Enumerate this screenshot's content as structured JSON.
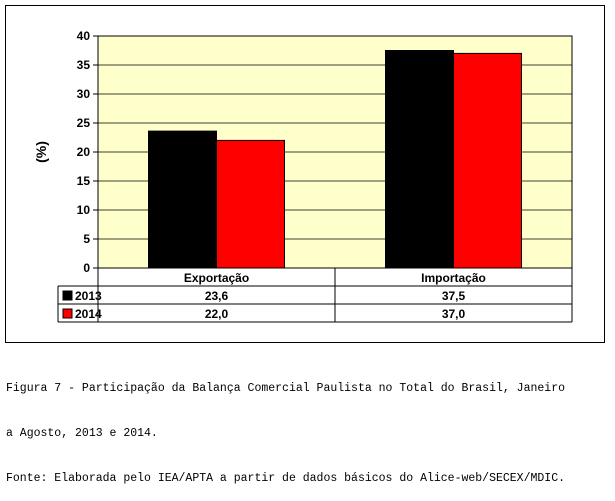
{
  "chart_data": {
    "type": "bar",
    "categories": [
      "Exportação",
      "Importação"
    ],
    "series": [
      {
        "name": "2013",
        "values": [
          23.6,
          37.5
        ],
        "labels": [
          "23,6",
          "37,5"
        ],
        "color": "#000000"
      },
      {
        "name": "2014",
        "values": [
          22.0,
          37.0
        ],
        "labels": [
          "22,0",
          "37,0"
        ],
        "color": "#ff0000"
      }
    ],
    "ylabel": "(%)",
    "ylim": [
      0,
      40
    ],
    "yticks": [
      "0",
      "5",
      "10",
      "15",
      "20",
      "25",
      "30",
      "35",
      "40"
    ],
    "grid": true,
    "plot_background": "#ffffcc",
    "legend": "data-table"
  },
  "caption": {
    "line1": "Figura 7 - Participação da Balança Comercial Paulista no Total do Brasil, Janeiro",
    "line2": "a Agosto, 2013 e 2014.",
    "line3": "Fonte: Elaborada pelo IEA/APTA a partir de dados básicos do Alice-web/SECEX/MDIC."
  }
}
